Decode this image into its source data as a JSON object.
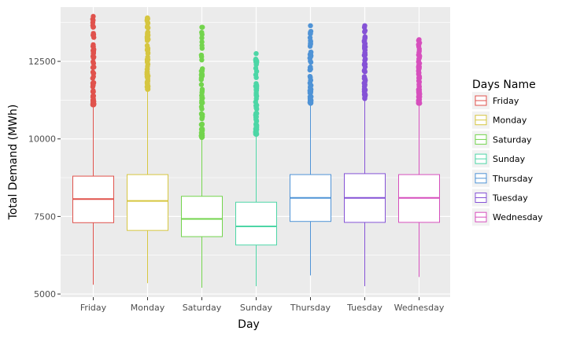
{
  "chart_data": {
    "type": "boxplot",
    "xlabel": "Day",
    "ylabel": "Total Demand (MWh)",
    "ylim": [
      4900,
      14250
    ],
    "yticks": [
      5000,
      7500,
      10000,
      12500
    ],
    "grid": true,
    "legend": {
      "title": "Days Name",
      "position": "right"
    },
    "categories": [
      "Friday",
      "Monday",
      "Saturday",
      "Sunday",
      "Thursday",
      "Tuesday",
      "Wednesday"
    ],
    "series": [
      {
        "name": "Friday",
        "color": "#e0524c",
        "whisker_low": 5300,
        "q1": 7300,
        "median": 8060,
        "q3": 8800,
        "whisker_high": 11100,
        "outlier_min": 11100,
        "outlier_max": 13950
      },
      {
        "name": "Monday",
        "color": "#d6c640",
        "whisker_low": 5350,
        "q1": 7050,
        "median": 8000,
        "q3": 8850,
        "whisker_high": 11600,
        "outlier_min": 11600,
        "outlier_max": 13900
      },
      {
        "name": "Saturday",
        "color": "#73d44d",
        "whisker_low": 5200,
        "q1": 6850,
        "median": 7420,
        "q3": 8150,
        "whisker_high": 10050,
        "outlier_min": 10050,
        "outlier_max": 13600
      },
      {
        "name": "Sunday",
        "color": "#4dd6a6",
        "whisker_low": 5250,
        "q1": 6580,
        "median": 7180,
        "q3": 7960,
        "whisker_high": 10150,
        "outlier_min": 10150,
        "outlier_max": 12750
      },
      {
        "name": "Thursday",
        "color": "#4f93d6",
        "whisker_low": 5600,
        "q1": 7340,
        "median": 8100,
        "q3": 8850,
        "whisker_high": 11150,
        "outlier_min": 11150,
        "outlier_max": 13650
      },
      {
        "name": "Tuesday",
        "color": "#8552d6",
        "whisker_low": 5250,
        "q1": 7310,
        "median": 8100,
        "q3": 8880,
        "whisker_high": 11300,
        "outlier_min": 11300,
        "outlier_max": 13650
      },
      {
        "name": "Wednesday",
        "color": "#d64fbd",
        "whisker_low": 5550,
        "q1": 7310,
        "median": 8100,
        "q3": 8850,
        "whisker_high": 11150,
        "outlier_min": 11150,
        "outlier_max": 13200
      }
    ]
  }
}
